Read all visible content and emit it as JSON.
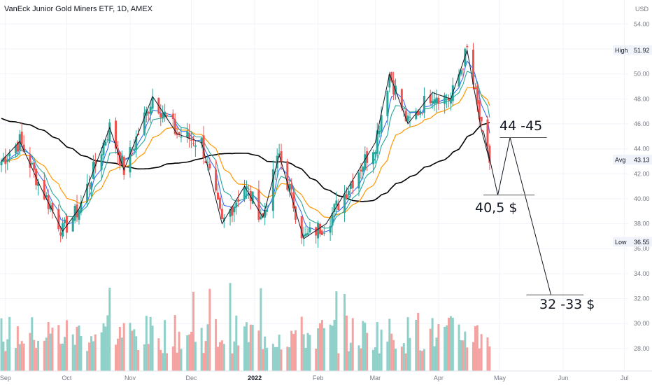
{
  "header": {
    "title": "VanEck Junior Gold Miners ETF, 1D, AMEX"
  },
  "price_axis": {
    "currency": "USD",
    "high_label": "High",
    "high_value": "51.92",
    "avg_label": "Avg",
    "avg_value": "43.13",
    "low_label": "Low",
    "low_value": "36.55"
  },
  "annotations": {
    "resistance": "44 -45",
    "support": "40,5 $",
    "target": "32 -33 $"
  },
  "colors": {
    "up": "#26a69a",
    "down": "#ef5350",
    "vol_up": "#8fd0c9",
    "vol_down": "#f5a3a1",
    "ema_fast": "#2962ff",
    "ema_mid": "#26a69a",
    "ma_orange": "#ff9800",
    "ma_long": "#000000",
    "grid": "#f0f3fa",
    "axis_text": "#787b86"
  },
  "chart_data": {
    "type": "candlestick",
    "title": "VanEck Junior Gold Miners ETF, 1D, AMEX",
    "x_ticks": [
      "Sep",
      "Oct",
      "Nov",
      "Dec",
      "2022",
      "Feb",
      "Mar",
      "Apr",
      "May",
      "Jun",
      "Jul"
    ],
    "y_ticks": [
      28,
      30,
      32,
      34,
      36,
      38,
      40,
      42,
      44,
      46,
      48,
      50,
      52,
      54
    ],
    "ylim": [
      26.2,
      54.8
    ],
    "grid": true,
    "price_path": [
      [
        "2021-08-30",
        43.0
      ],
      [
        "2021-09-08",
        44.6
      ],
      [
        "2021-09-18",
        41.0
      ],
      [
        "2021-09-29",
        37.4
      ],
      [
        "2021-10-07",
        39.2
      ],
      [
        "2021-10-22",
        45.7
      ],
      [
        "2021-10-29",
        42.3
      ],
      [
        "2021-11-12",
        48.2
      ],
      [
        "2021-11-24",
        45.2
      ],
      [
        "2021-12-06",
        44.5
      ],
      [
        "2021-12-16",
        38.0
      ],
      [
        "2021-12-27",
        41.0
      ],
      [
        "2022-01-05",
        38.5
      ],
      [
        "2022-01-13",
        43.5
      ],
      [
        "2022-01-25",
        36.8
      ],
      [
        "2022-02-05",
        38.0
      ],
      [
        "2022-02-18",
        41.5
      ],
      [
        "2022-03-01",
        44.5
      ],
      [
        "2022-03-08",
        50.0
      ],
      [
        "2022-03-17",
        46.0
      ],
      [
        "2022-03-29",
        48.5
      ],
      [
        "2022-04-07",
        48.0
      ],
      [
        "2022-04-15",
        51.9
      ],
      [
        "2022-04-22",
        45.5
      ],
      [
        "2022-04-26",
        43.0
      ]
    ],
    "moving_averages": [
      "ema_fast",
      "ema_mid",
      "ma_orange",
      "ma_long"
    ],
    "projection": [
      [
        "2022-04-23",
        45.4
      ],
      [
        "2022-04-30",
        40.3
      ],
      [
        "2022-05-06",
        44.9
      ],
      [
        "2022-05-26",
        32.3
      ]
    ],
    "levels": {
      "resistance": 44.9,
      "support": 40.3,
      "target": 32.3
    },
    "high": 51.92,
    "avg": 43.13,
    "low": 36.55
  }
}
